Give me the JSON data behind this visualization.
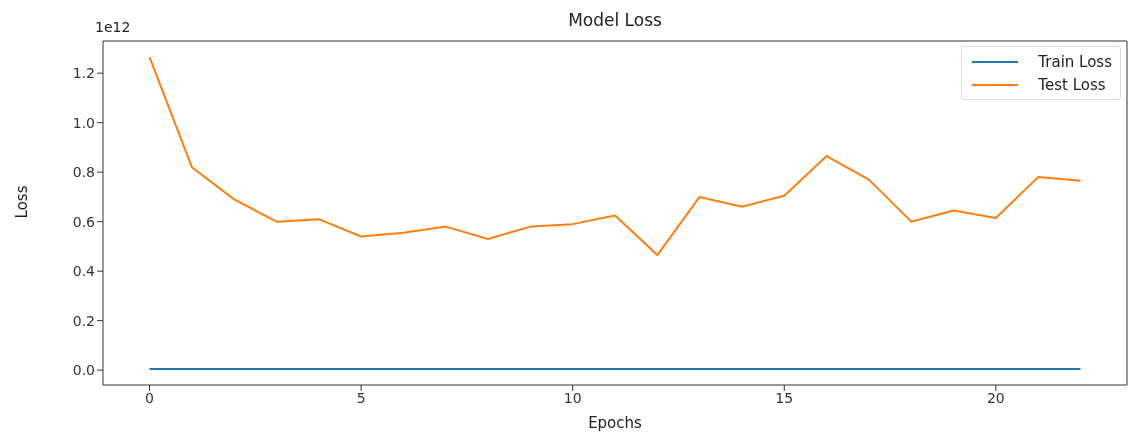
{
  "chart_data": {
    "type": "line",
    "title": "Model Loss",
    "xlabel": "Epochs",
    "ylabel": "Loss",
    "annotations": [
      "1e12"
    ],
    "x": [
      0,
      1,
      2,
      3,
      4,
      5,
      6,
      7,
      8,
      9,
      10,
      11,
      12,
      13,
      14,
      15,
      16,
      17,
      18,
      19,
      20,
      21,
      22
    ],
    "series": [
      {
        "name": "Train Loss",
        "color": "#1f77b4",
        "values": [
          0.005,
          0.005,
          0.005,
          0.005,
          0.005,
          0.005,
          0.005,
          0.005,
          0.005,
          0.005,
          0.005,
          0.005,
          0.005,
          0.005,
          0.005,
          0.005,
          0.005,
          0.005,
          0.005,
          0.005,
          0.005,
          0.005,
          0.005
        ]
      },
      {
        "name": "Test Loss",
        "color": "#ff7f0e",
        "values": [
          1.265,
          0.82,
          0.69,
          0.6,
          0.61,
          0.54,
          0.555,
          0.58,
          0.53,
          0.58,
          0.59,
          0.625,
          0.465,
          0.7,
          0.66,
          0.705,
          0.865,
          0.77,
          0.6,
          0.645,
          0.615,
          0.78,
          0.765
        ]
      }
    ],
    "xlim": [
      -1.1,
      23.1
    ],
    "xticks": [
      0,
      5,
      10,
      15,
      20
    ],
    "ylim": [
      -0.06,
      1.33
    ],
    "yticks": [
      {
        "value": 0,
        "label": "0.0"
      },
      {
        "value": 0.2,
        "label": "0.2"
      },
      {
        "value": 0.4,
        "label": "0.4"
      },
      {
        "value": 0.6,
        "label": "0.6"
      },
      {
        "value": 0.8,
        "label": "0.8"
      },
      {
        "value": 1.0,
        "label": "1.0"
      },
      {
        "value": 1.2,
        "label": "1.2"
      }
    ],
    "grid": false,
    "legend": "top right",
    "marker": "none",
    "line_style": "solid"
  }
}
